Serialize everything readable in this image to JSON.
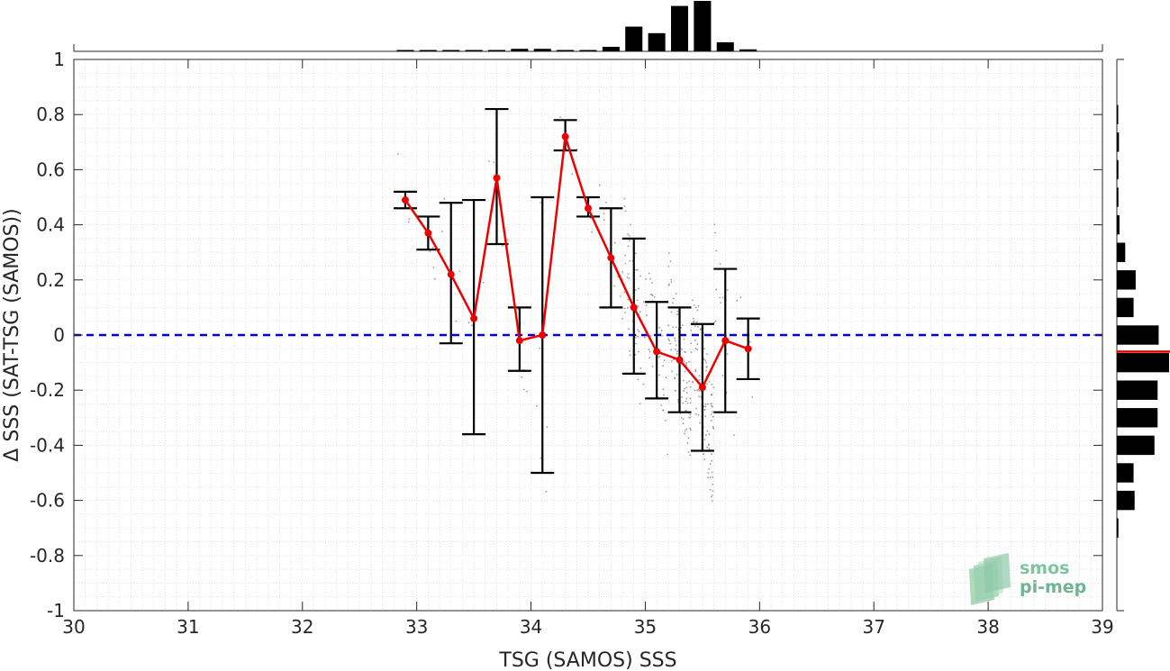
{
  "chart_data": {
    "type": "scatter",
    "xlabel": "TSG (SAMOS) SSS",
    "ylabel": "Δ SSS (SAT-TSG (SAMOS))",
    "xlim": [
      30,
      39
    ],
    "ylim": [
      -1,
      1
    ],
    "xticks": [
      "30",
      "31",
      "32",
      "33",
      "34",
      "35",
      "36",
      "37",
      "38",
      "39"
    ],
    "yticks": [
      "-1",
      "-0.8",
      "-0.6",
      "-0.4",
      "-0.2",
      "0",
      "0.2",
      "0.4",
      "0.6",
      "0.8",
      "1"
    ],
    "grid": "minor dotted",
    "zero_line": {
      "y": 0,
      "color": "#0000dd",
      "style": "dashed"
    },
    "binned_mean": {
      "color": "#ee0000",
      "x": [
        32.9,
        33.1,
        33.3,
        33.5,
        33.7,
        33.9,
        34.1,
        34.3,
        34.5,
        34.7,
        34.9,
        35.1,
        35.3,
        35.5,
        35.7,
        35.9
      ],
      "y": [
        0.49,
        0.37,
        0.22,
        0.06,
        0.57,
        -0.02,
        0.0,
        0.72,
        0.46,
        0.28,
        0.1,
        -0.06,
        -0.09,
        -0.19,
        -0.02,
        -0.05
      ],
      "ylow": [
        0.46,
        0.31,
        -0.03,
        -0.36,
        0.33,
        -0.13,
        -0.5,
        0.67,
        0.43,
        0.1,
        -0.14,
        -0.23,
        -0.28,
        -0.42,
        -0.28,
        -0.16
      ],
      "yhigh": [
        0.52,
        0.43,
        0.48,
        0.49,
        0.82,
        0.1,
        0.5,
        0.78,
        0.5,
        0.46,
        0.35,
        0.12,
        0.1,
        0.04,
        0.24,
        0.06
      ]
    },
    "scatter_color": "#9a9a9a",
    "top_histogram": {
      "bin_x": [
        32.9,
        33.1,
        33.3,
        33.5,
        33.7,
        33.9,
        34.1,
        34.3,
        34.5,
        34.7,
        34.9,
        35.1,
        35.3,
        35.5,
        35.7,
        35.9
      ],
      "counts": [
        0.015,
        0.015,
        0.015,
        0.015,
        0.015,
        0.05,
        0.05,
        0.015,
        0.015,
        0.09,
        0.49,
        0.36,
        0.9,
        1.0,
        0.18,
        0.04
      ]
    },
    "right_histogram": {
      "bin_y": [
        0.8,
        0.7,
        0.6,
        0.5,
        0.4,
        0.3,
        0.2,
        0.1,
        0.0,
        -0.1,
        -0.2,
        -0.3,
        -0.4,
        -0.5,
        -0.6,
        -0.7
      ],
      "counts": [
        0.02,
        0.04,
        0.03,
        0.03,
        0.05,
        0.16,
        0.36,
        0.32,
        0.8,
        1.0,
        0.78,
        0.78,
        0.72,
        0.32,
        0.34,
        0.03
      ],
      "median_y": -0.06,
      "median_color": "#ee0000"
    }
  },
  "logo": {
    "line1": "smos",
    "line2": "pi-mep"
  }
}
